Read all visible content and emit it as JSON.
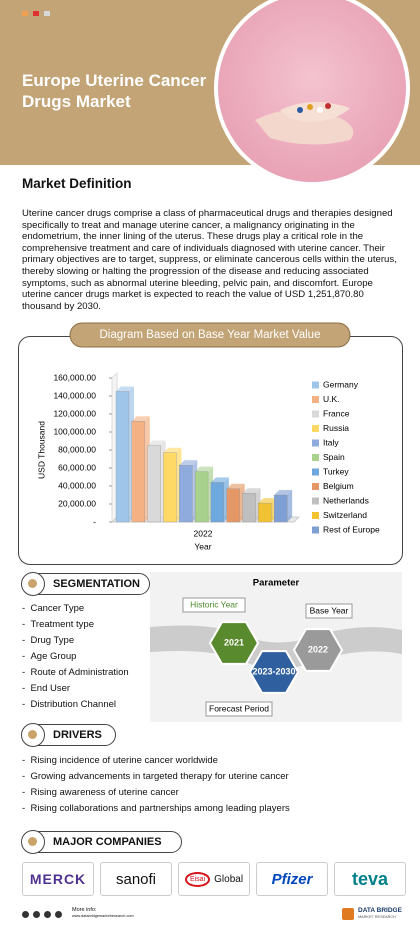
{
  "header": {
    "title": "Europe Uterine Cancer Drugs Market"
  },
  "definition": {
    "heading": "Market Definition",
    "text": "Uterine cancer drugs comprise a class of pharmaceutical drugs and therapies designed specifically to treat and manage uterine cancer, a malignancy originating in the endometrium, the inner lining of the uterus. These drugs play a critical role in the comprehensive treatment and care of individuals diagnosed with uterine cancer. Their primary objectives are to target, suppress, or eliminate cancerous cells within the uterus, thereby slowing or halting the progression of the disease and reducing associated symptoms, such as abnormal uterine bleeding, pelvic pain, and discomfort. Europe uterine cancer drugs market is expected to reach the value of USD 1,251,870.80 thousand by 2030."
  },
  "chart_data": {
    "type": "bar",
    "title": "Diagram Based on Base Year Market Value",
    "categories": [
      "2022"
    ],
    "xlabel": "Year",
    "ylabel": "USD Thousand",
    "ylim": [
      0,
      160000
    ],
    "yticks": [
      {
        "value": 0,
        "label": "-"
      },
      {
        "value": 20000,
        "label": "20,000.00"
      },
      {
        "value": 40000,
        "label": "40,000.00"
      },
      {
        "value": 60000,
        "label": "60,000.00"
      },
      {
        "value": 80000,
        "label": "80,000.00"
      },
      {
        "value": 100000,
        "label": "100,000.00"
      },
      {
        "value": 120000,
        "label": "120,000.00"
      },
      {
        "value": 140000,
        "label": "140,000.00"
      },
      {
        "value": 160000,
        "label": "160,000.00"
      }
    ],
    "series": [
      {
        "name": "Germany",
        "color": "#9fc5e8",
        "values": [
          145000
        ]
      },
      {
        "name": "U.K.",
        "color": "#f4b183",
        "values": [
          112000
        ]
      },
      {
        "name": "France",
        "color": "#d9d9d9",
        "values": [
          85000
        ]
      },
      {
        "name": "Russia",
        "color": "#ffd966",
        "values": [
          77000
        ]
      },
      {
        "name": "Italy",
        "color": "#8faadc",
        "values": [
          63000
        ]
      },
      {
        "name": "Spain",
        "color": "#a9d18e",
        "values": [
          56000
        ]
      },
      {
        "name": "Turkey",
        "color": "#6fa8dc",
        "values": [
          44000
        ]
      },
      {
        "name": "Belgium",
        "color": "#e59866",
        "values": [
          37000
        ]
      },
      {
        "name": "Netherlands",
        "color": "#bfbfbf",
        "values": [
          32000
        ]
      },
      {
        "name": "Switzerland",
        "color": "#f1c232",
        "values": [
          21000
        ]
      },
      {
        "name": "Rest of Europe",
        "color": "#7f9fd4",
        "values": [
          30000
        ]
      }
    ]
  },
  "segmentation": {
    "heading": "SEGMENTATION",
    "items": [
      "Cancer Type",
      "Treatment type",
      "Drug Type",
      "Age Group",
      "Route of Administration",
      "End User",
      "Distribution Channel"
    ]
  },
  "parameter": {
    "title": "Parameter",
    "historic_label": "Historic Year",
    "base_label": "Base Year",
    "forecast_label": "Forecast Period",
    "historic_year": "2021",
    "forecast_years": "2023-2030",
    "base_year": "2022"
  },
  "drivers": {
    "heading": "DRIVERS",
    "items": [
      "Rising incidence of uterine cancer worldwide",
      "Growing advancements in targeted therapy for uterine cancer",
      "Rising awareness of uterine cancer",
      "Rising collaborations and partnerships among leading players"
    ]
  },
  "companies": {
    "heading": "MAJOR COMPANIES",
    "logos": [
      "MERCK",
      "sanofi",
      "Eisai",
      "Global",
      "Pfizer",
      "teva"
    ]
  },
  "footer": {
    "more_info": "More info:",
    "url": "www.databridgemarketresearch.com",
    "brand": "DATA BRIDGE",
    "brand_sub": "MARKET RESEARCH"
  }
}
